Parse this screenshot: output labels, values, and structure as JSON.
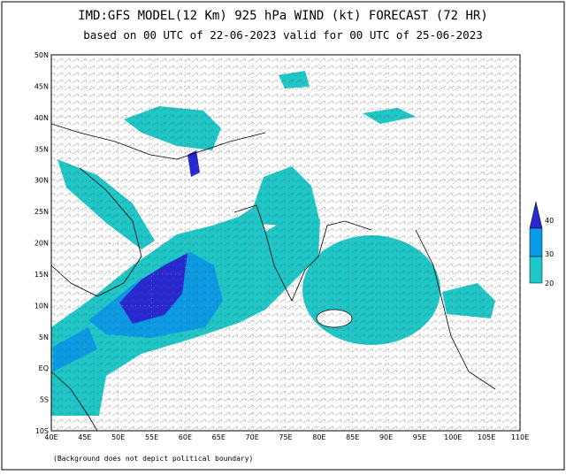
{
  "header": {
    "title": "IMD:GFS MODEL(12 Km) 925 hPa WIND (kt) FORECAST (72 HR)",
    "subtitle": "based on 00 UTC of 22-06-2023 valid for 00 UTC of 25-06-2023"
  },
  "map": {
    "lat_labels": [
      "50N",
      "45N",
      "40N",
      "35N",
      "30N",
      "25N",
      "20N",
      "15N",
      "10N",
      "5N",
      "EQ",
      "5S",
      "10S"
    ],
    "lon_labels": [
      "40E",
      "45E",
      "50E",
      "55E",
      "60E",
      "65E",
      "70E",
      "75E",
      "80E",
      "85E",
      "90E",
      "95E",
      "100E",
      "105E",
      "110E"
    ]
  },
  "legend": {
    "labels": [
      "40",
      "30",
      "20"
    ]
  },
  "footnote": "(Background does not depict political boundary)"
}
